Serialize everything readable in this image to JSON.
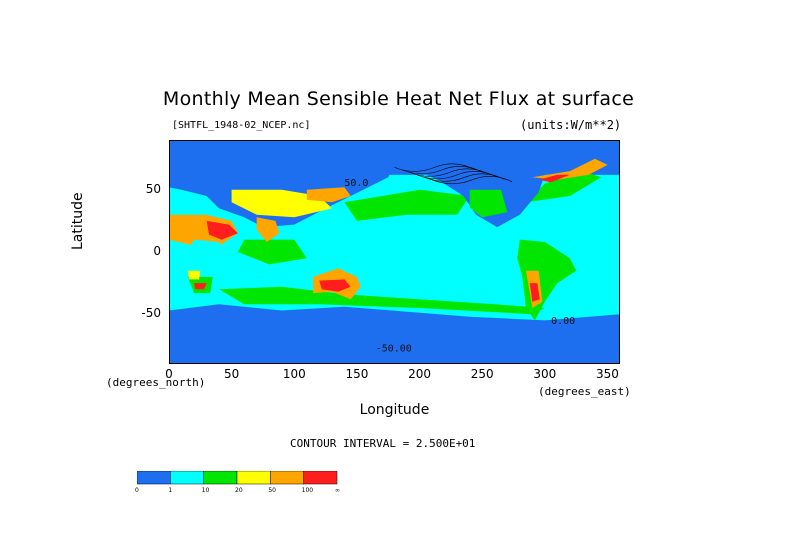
{
  "chart_data": {
    "type": "heatmap",
    "title": "Monthly Mean Sensible Heat Net Flux at surface",
    "file_label": "[SHTFL_1948-02_NCEP.nc]",
    "units_label": "(units:W/m**2)",
    "xlabel": "Longitude",
    "ylabel": "Latitude",
    "x_unit_label": "(degrees_east)",
    "y_unit_label": "(degrees_north)",
    "xlim": [
      0,
      360
    ],
    "ylim": [
      -90,
      90
    ],
    "x_ticks": [
      "0",
      "50",
      "100",
      "150",
      "200",
      "250",
      "300",
      "350"
    ],
    "y_ticks": [
      "50",
      "0",
      "-50"
    ],
    "contour_interval_label": "CONTOUR INTERVAL = 2.500E+01",
    "contour_labels": [
      "50.0",
      "0.00",
      "-50.00"
    ],
    "colorbar": {
      "colors": [
        "#1e6ef0",
        "#00ffff",
        "#00e600",
        "#ffff00",
        "#ffa500",
        "#ff1e1e"
      ],
      "labels": [
        "0",
        "1",
        "10",
        "20",
        "50",
        "100",
        "∞"
      ]
    }
  }
}
